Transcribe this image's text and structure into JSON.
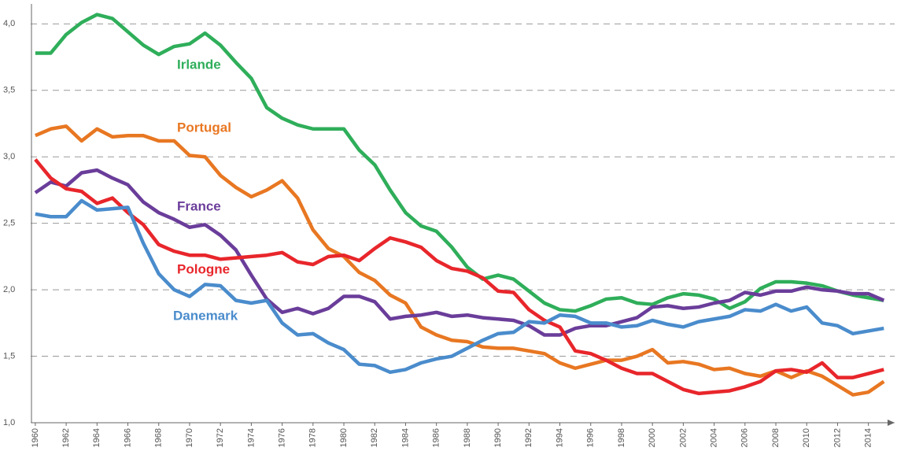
{
  "chart_data": {
    "type": "line",
    "x": [
      1960,
      1961,
      1962,
      1963,
      1964,
      1965,
      1966,
      1967,
      1968,
      1969,
      1970,
      1971,
      1972,
      1973,
      1974,
      1975,
      1976,
      1977,
      1978,
      1979,
      1980,
      1981,
      1982,
      1983,
      1984,
      1985,
      1986,
      1987,
      1988,
      1989,
      1990,
      1991,
      1992,
      1993,
      1994,
      1995,
      1996,
      1997,
      1998,
      1999,
      2000,
      2001,
      2002,
      2003,
      2004,
      2005,
      2006,
      2007,
      2008,
      2009,
      2010,
      2011,
      2012,
      2013,
      2014,
      2015
    ],
    "xlim": [
      1959.7,
      2015.7
    ],
    "xticks": [
      1960,
      1962,
      1964,
      1966,
      1968,
      1970,
      1972,
      1974,
      1976,
      1978,
      1980,
      1982,
      1984,
      1986,
      1988,
      1990,
      1992,
      1994,
      1996,
      1998,
      2000,
      2002,
      2004,
      2006,
      2008,
      2010,
      2012,
      2014
    ],
    "ylim": [
      1,
      4.15
    ],
    "yticks": [
      {
        "value": 1,
        "label": "1,0"
      },
      {
        "value": 1.5,
        "label": "1,5"
      },
      {
        "value": 2,
        "label": "2,0"
      },
      {
        "value": 2.5,
        "label": "2,5"
      },
      {
        "value": 3,
        "label": "3,0"
      },
      {
        "value": 3.5,
        "label": "3,5"
      },
      {
        "value": 4,
        "label": "4,0"
      }
    ],
    "grid": true,
    "series": [
      {
        "name": "Irlande",
        "color": "#2fae5a",
        "values": [
          3.78,
          3.78,
          3.92,
          4.01,
          4.07,
          4.04,
          3.94,
          3.84,
          3.77,
          3.83,
          3.85,
          3.93,
          3.84,
          3.71,
          3.59,
          3.37,
          3.29,
          3.24,
          3.21,
          3.21,
          3.21,
          3.05,
          2.94,
          2.75,
          2.58,
          2.48,
          2.44,
          2.32,
          2.17,
          2.08,
          2.11,
          2.08,
          1.99,
          1.9,
          1.85,
          1.84,
          1.88,
          1.93,
          1.94,
          1.9,
          1.89,
          1.94,
          1.97,
          1.96,
          1.93,
          1.86,
          1.91,
          2.01,
          2.06,
          2.06,
          2.05,
          2.03,
          1.99,
          1.96,
          1.94,
          1.92
        ]
      },
      {
        "name": "Portugal",
        "color": "#e87722",
        "values": [
          3.16,
          3.21,
          3.23,
          3.12,
          3.21,
          3.15,
          3.16,
          3.16,
          3.12,
          3.12,
          3.01,
          3.0,
          2.86,
          2.77,
          2.7,
          2.75,
          2.82,
          2.69,
          2.45,
          2.31,
          2.25,
          2.13,
          2.07,
          1.96,
          1.9,
          1.72,
          1.66,
          1.62,
          1.61,
          1.57,
          1.56,
          1.56,
          1.54,
          1.52,
          1.45,
          1.41,
          1.44,
          1.47,
          1.47,
          1.5,
          1.55,
          1.45,
          1.46,
          1.44,
          1.4,
          1.41,
          1.37,
          1.35,
          1.39,
          1.34,
          1.39,
          1.35,
          1.28,
          1.21,
          1.23,
          1.31
        ]
      },
      {
        "name": "France",
        "color": "#6a3d9a",
        "values": [
          2.73,
          2.81,
          2.78,
          2.88,
          2.9,
          2.84,
          2.79,
          2.66,
          2.58,
          2.53,
          2.47,
          2.49,
          2.41,
          2.3,
          2.11,
          1.93,
          1.83,
          1.86,
          1.82,
          1.86,
          1.95,
          1.95,
          1.91,
          1.78,
          1.8,
          1.81,
          1.83,
          1.8,
          1.81,
          1.79,
          1.78,
          1.77,
          1.73,
          1.66,
          1.66,
          1.71,
          1.73,
          1.73,
          1.76,
          1.79,
          1.87,
          1.88,
          1.86,
          1.87,
          1.9,
          1.92,
          1.98,
          1.96,
          1.99,
          1.99,
          2.02,
          2.0,
          1.99,
          1.97,
          1.97,
          1.92
        ]
      },
      {
        "name": "Pologne",
        "color": "#e8262b",
        "values": [
          2.98,
          2.84,
          2.76,
          2.74,
          2.65,
          2.69,
          2.58,
          2.49,
          2.34,
          2.29,
          2.26,
          2.26,
          2.23,
          2.24,
          2.25,
          2.26,
          2.28,
          2.21,
          2.19,
          2.25,
          2.26,
          2.22,
          2.31,
          2.39,
          2.36,
          2.32,
          2.22,
          2.16,
          2.14,
          2.09,
          1.99,
          1.98,
          1.85,
          1.77,
          1.72,
          1.54,
          1.52,
          1.47,
          1.41,
          1.37,
          1.37,
          1.31,
          1.25,
          1.22,
          1.23,
          1.24,
          1.27,
          1.31,
          1.39,
          1.4,
          1.38,
          1.45,
          1.34,
          1.34,
          1.37,
          1.4
        ]
      },
      {
        "name": "Danemark",
        "color": "#4a8ccc",
        "values": [
          2.57,
          2.55,
          2.55,
          2.67,
          2.6,
          2.61,
          2.62,
          2.35,
          2.12,
          2.0,
          1.95,
          2.04,
          2.03,
          1.92,
          1.9,
          1.92,
          1.75,
          1.66,
          1.67,
          1.6,
          1.55,
          1.44,
          1.43,
          1.38,
          1.4,
          1.45,
          1.48,
          1.5,
          1.56,
          1.62,
          1.67,
          1.68,
          1.76,
          1.75,
          1.81,
          1.8,
          1.75,
          1.75,
          1.72,
          1.73,
          1.77,
          1.74,
          1.72,
          1.76,
          1.78,
          1.8,
          1.85,
          1.84,
          1.89,
          1.84,
          1.87,
          1.75,
          1.73,
          1.67,
          1.69,
          1.71
        ]
      }
    ]
  }
}
